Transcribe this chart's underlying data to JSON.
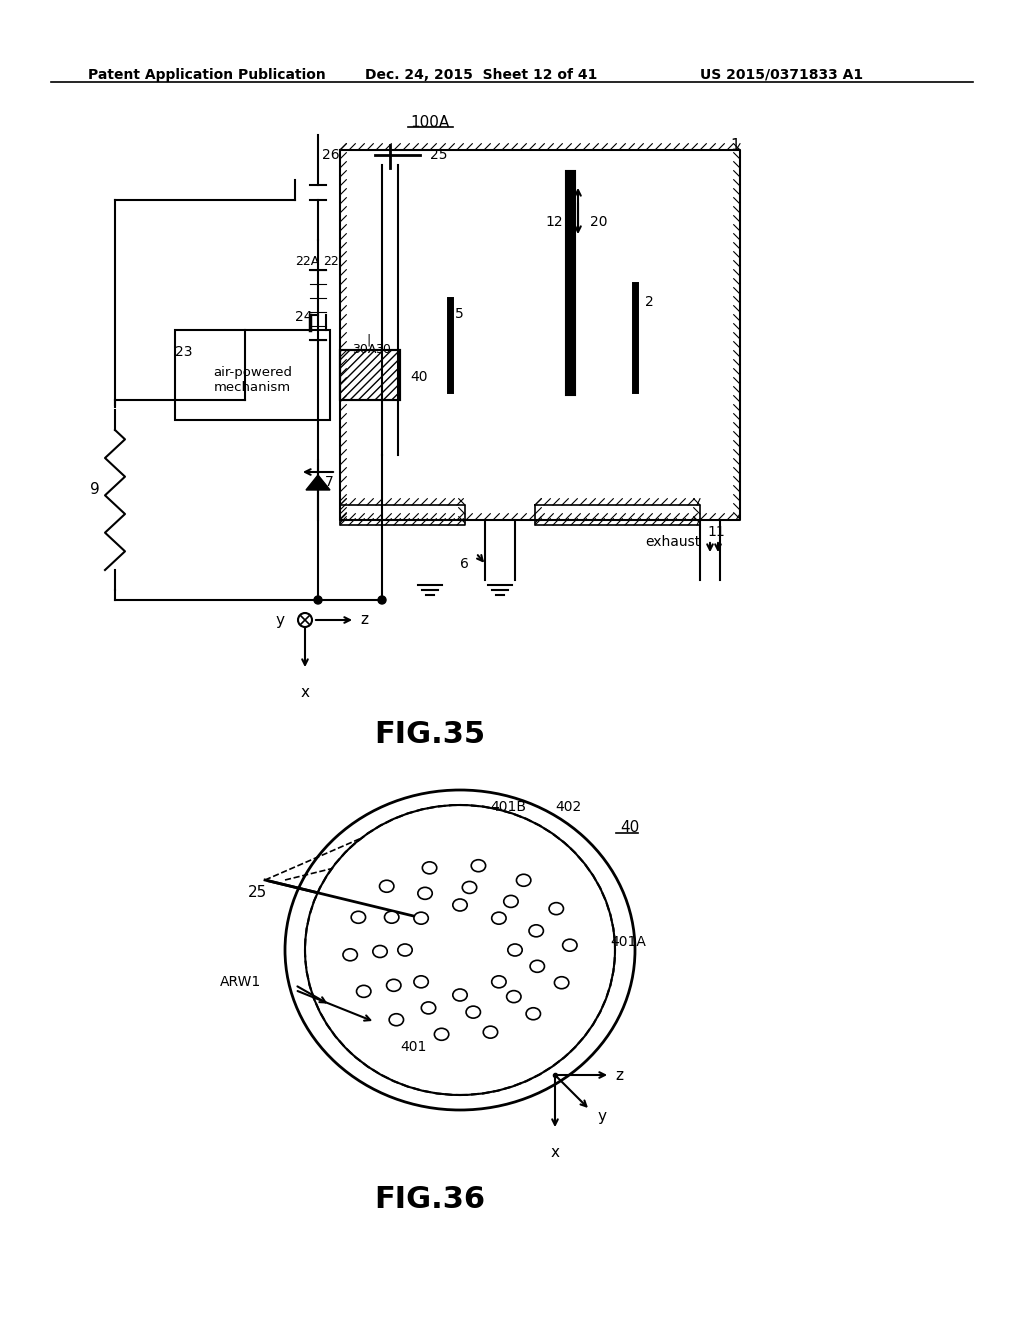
{
  "bg_color": "#ffffff",
  "header_left": "Patent Application Publication",
  "header_mid": "Dec. 24, 2015  Sheet 12 of 41",
  "header_right": "US 2015/0371833 A1",
  "fig35_label": "FIG.35",
  "fig36_label": "FIG.36",
  "label_100A": "100A"
}
